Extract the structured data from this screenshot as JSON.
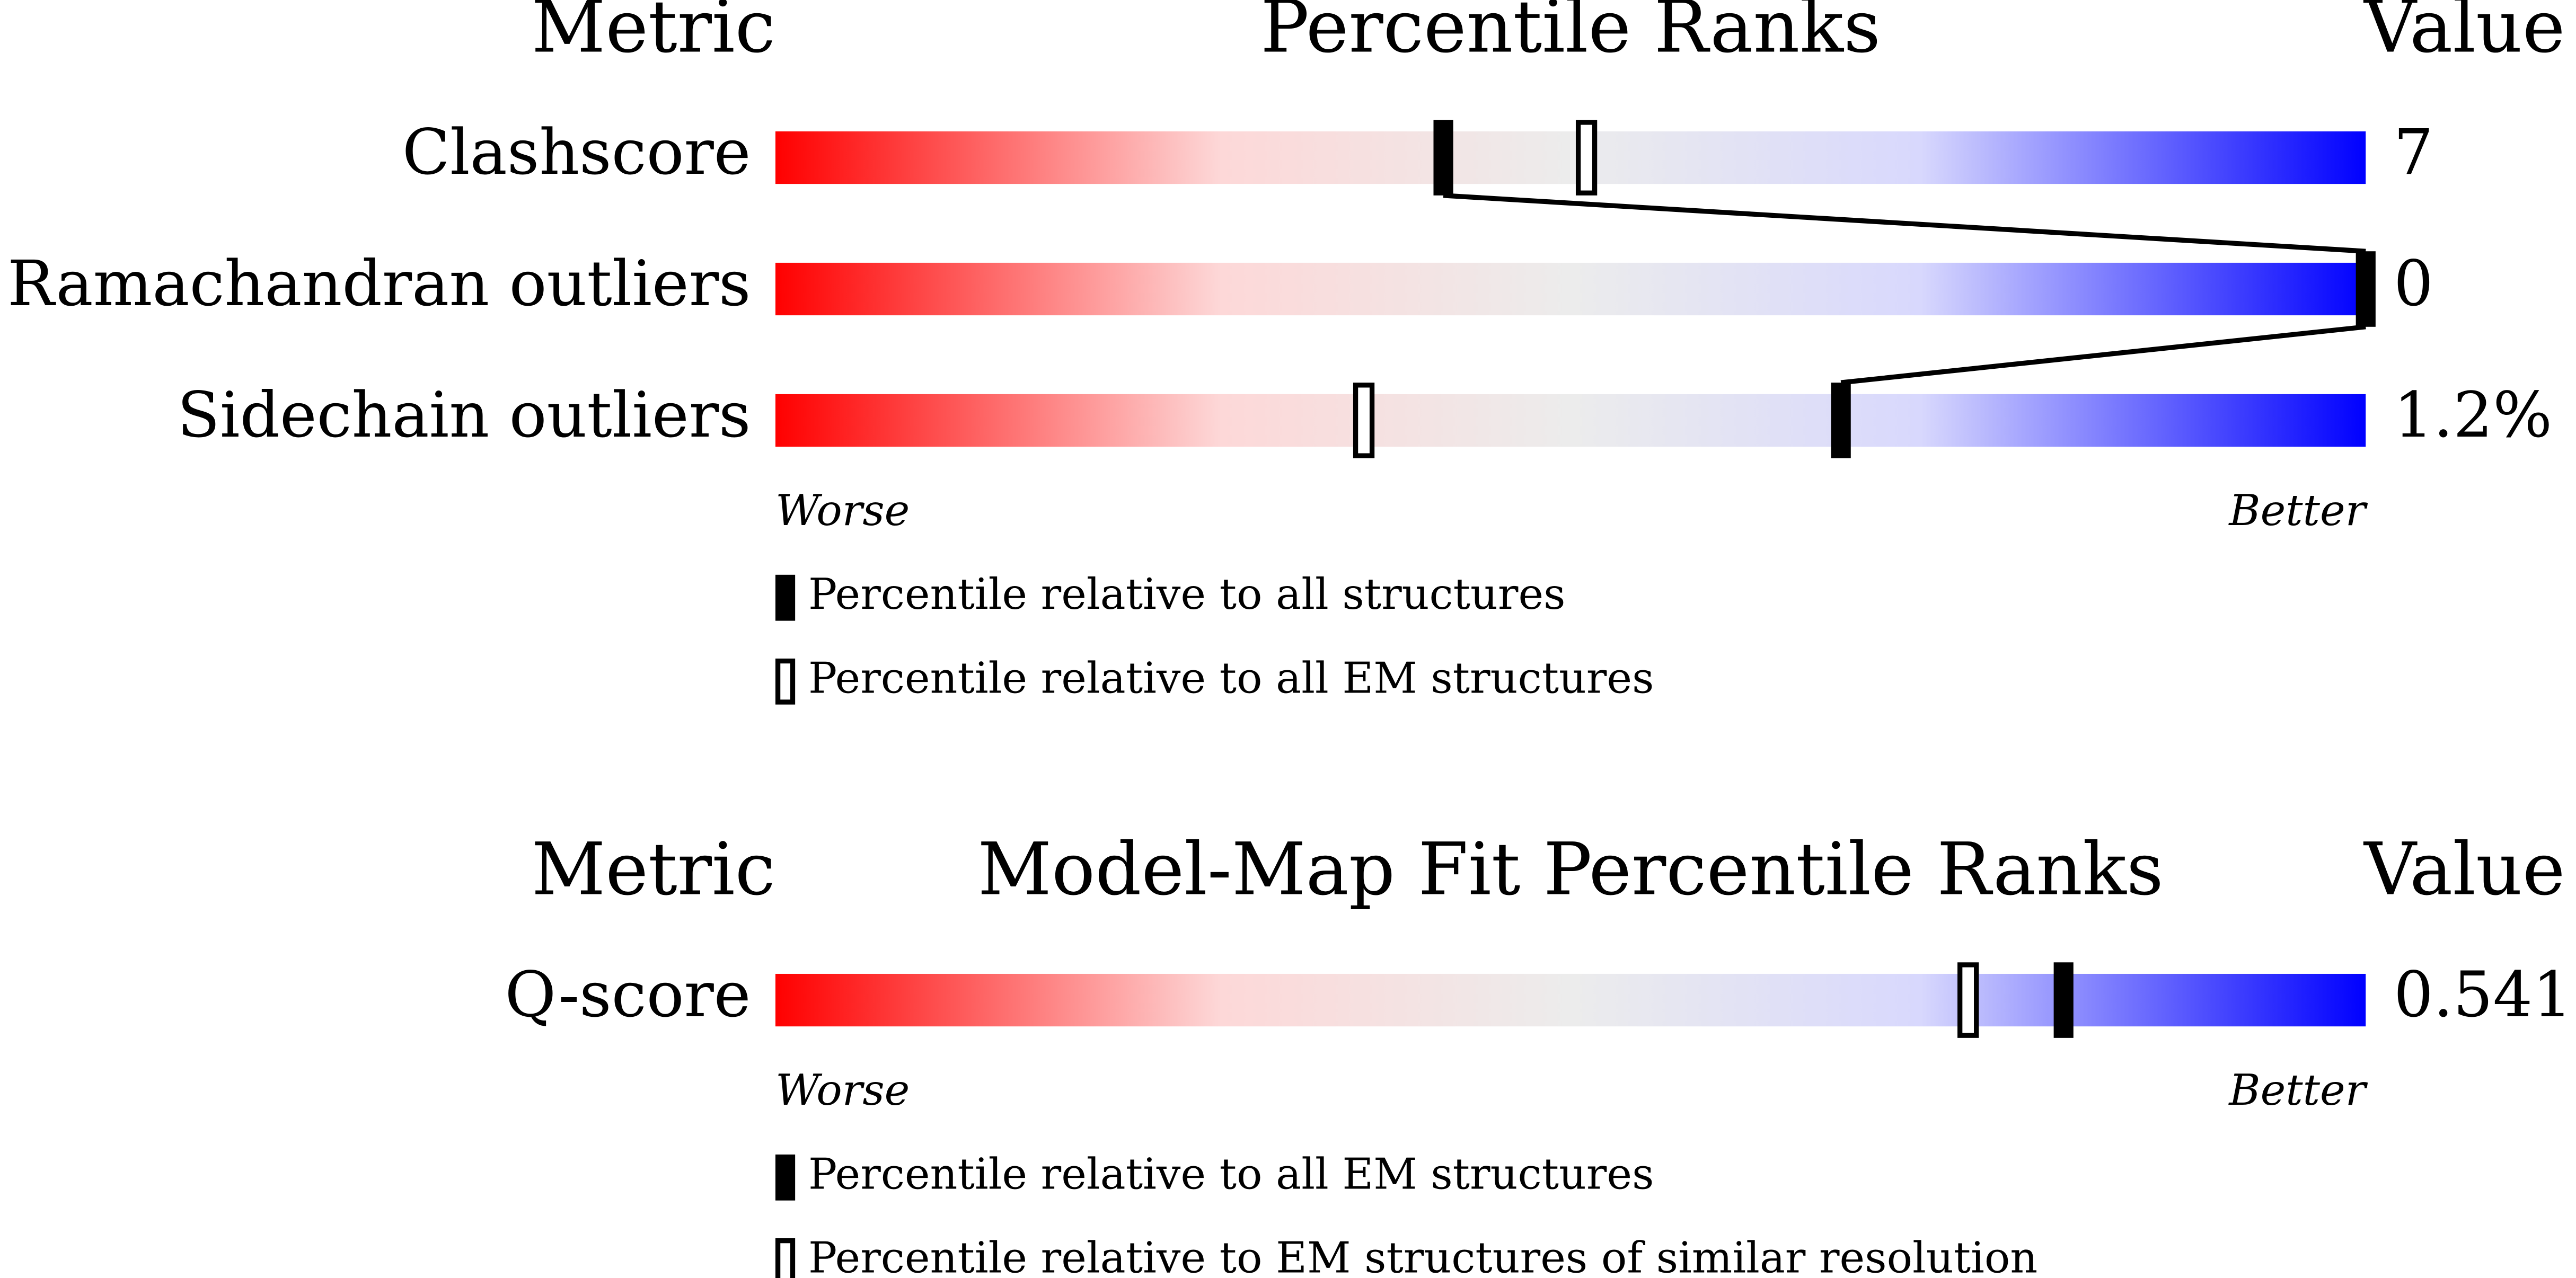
{
  "chart_data": [
    {
      "type": "percentile",
      "metric_header": "Metric",
      "title": "Percentile Ranks",
      "value_header": "Value",
      "categories": [
        "Clashscore",
        "Ramachandran outliers",
        "Sidechain outliers"
      ],
      "values": [
        7,
        0,
        1.2
      ],
      "value_labels": [
        "7",
        "0",
        "1.2%"
      ],
      "xlim": [
        0,
        100
      ],
      "worse_label": "Worse",
      "better_label": "Better",
      "connect_filled": true,
      "series": [
        {
          "name": "Percentile relative to all structures",
          "style": "filled",
          "color": "#000000",
          "values": [
            42,
            100,
            67
          ]
        },
        {
          "name": "Percentile relative to all EM structures",
          "style": "outline",
          "color": "#000000",
          "values": [
            51,
            null,
            37
          ]
        }
      ]
    },
    {
      "type": "percentile",
      "metric_header": "Metric",
      "title": "Model-Map Fit Percentile Ranks",
      "value_header": "Value",
      "categories": [
        "Q-score"
      ],
      "values": [
        0.541
      ],
      "xlim": [
        0,
        100
      ],
      "worse_label": "Worse",
      "better_label": "Better",
      "connect_filled": false,
      "series": [
        {
          "name": "Percentile relative to all EM structures",
          "style": "filled",
          "color": "#000000",
          "values": [
            81
          ]
        },
        {
          "name": "Percentile relative to EM structures of similar resolution",
          "style": "outline",
          "color": "#000000",
          "values": [
            75
          ]
        }
      ]
    }
  ]
}
